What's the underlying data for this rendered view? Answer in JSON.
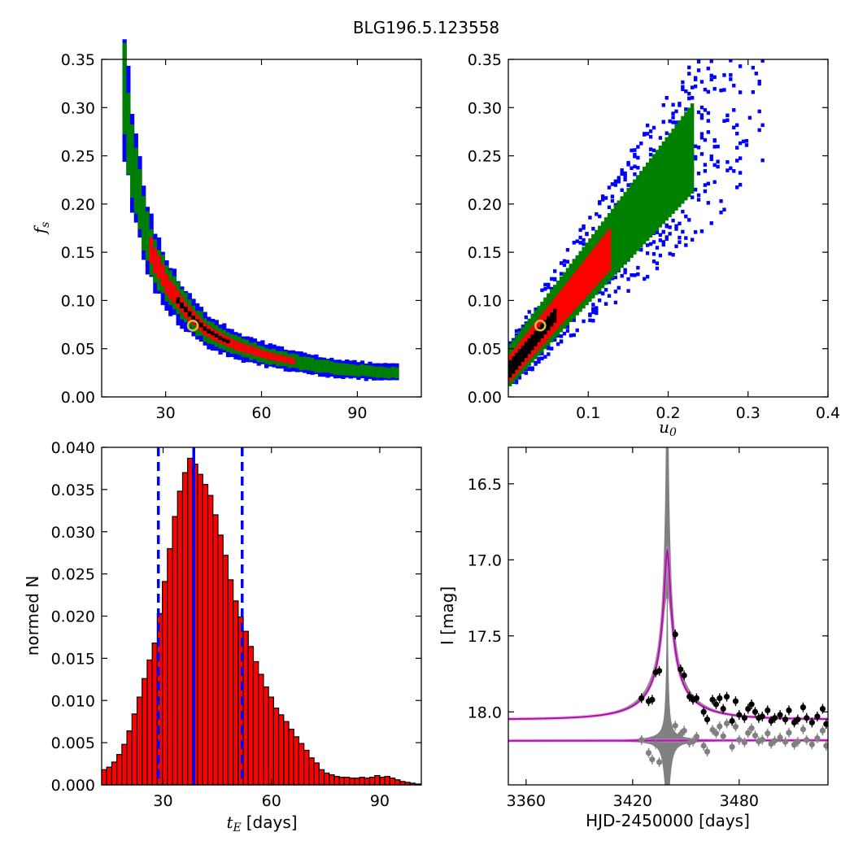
{
  "title": "BLG196.5.123558",
  "chart_data": [
    {
      "type": "heatmap",
      "id": "fs_vs_tE",
      "xlabel": "",
      "ylabel": "f_s",
      "xlim": [
        10,
        110
      ],
      "ylim": [
        0.0,
        0.35
      ],
      "xticks": [
        "30",
        "60",
        "90"
      ],
      "xtick_values": [
        30,
        60,
        90
      ],
      "yticks": [
        "0.00",
        "0.05",
        "0.10",
        "0.15",
        "0.20",
        "0.25",
        "0.30",
        "0.35"
      ],
      "ytick_values": [
        0.0,
        0.05,
        0.1,
        0.15,
        0.2,
        0.25,
        0.3,
        0.35
      ],
      "ridge_x": [
        16.5,
        18,
        20,
        22,
        24,
        27,
        30,
        34,
        38,
        42,
        47,
        52,
        58,
        65,
        72,
        80,
        88,
        95,
        102
      ],
      "ridge_y": [
        0.315,
        0.27,
        0.225,
        0.19,
        0.16,
        0.135,
        0.115,
        0.097,
        0.082,
        0.07,
        0.06,
        0.053,
        0.046,
        0.04,
        0.035,
        0.031,
        0.028,
        0.026,
        0.025
      ],
      "levels": [
        "blue",
        "green",
        "red",
        "black"
      ],
      "best_fit": {
        "x": 38.5,
        "y": 0.074
      },
      "colors": {
        "outer": "#0000ff",
        "mid": "#008000",
        "inner": "#ff0000",
        "core": "#000000",
        "marker": "#d4c13a"
      }
    },
    {
      "type": "heatmap",
      "id": "fs_vs_u0",
      "xlabel": "u_0",
      "ylabel": "",
      "xlim": [
        0.0,
        0.4
      ],
      "ylim": [
        0.0,
        0.35
      ],
      "xticks": [
        "0.1",
        "0.2",
        "0.3",
        "0.4"
      ],
      "xtick_values": [
        0.1,
        0.2,
        0.3,
        0.4
      ],
      "yticks": [
        "0.00",
        "0.05",
        "0.10",
        "0.15",
        "0.20",
        "0.25",
        "0.30",
        "0.35"
      ],
      "ytick_values": [
        0.0,
        0.05,
        0.1,
        0.15,
        0.2,
        0.25,
        0.3,
        0.35
      ],
      "relation_slope": 0.985,
      "relation_intercept": 0.033,
      "best_fit": {
        "x": 0.04,
        "y": 0.074
      },
      "colors": {
        "outer": "#0000ff",
        "mid": "#008000",
        "inner": "#ff0000",
        "core": "#000000",
        "marker": "#d4c13a"
      }
    },
    {
      "type": "bar",
      "id": "tE_histogram",
      "xlabel_var": "t_E",
      "xlabel_unit": "[days]",
      "ylabel": "normed N",
      "xlim": [
        13,
        101.5
      ],
      "ylim": [
        0.0,
        0.04
      ],
      "xticks": [
        "30",
        "60",
        "90"
      ],
      "xtick_values": [
        30,
        60,
        90
      ],
      "yticks": [
        "0.000",
        "0.005",
        "0.010",
        "0.015",
        "0.020",
        "0.025",
        "0.030",
        "0.035",
        "0.040"
      ],
      "ytick_values": [
        0.0,
        0.005,
        0.01,
        0.015,
        0.02,
        0.025,
        0.03,
        0.035,
        0.04
      ],
      "bin_start": 13.0,
      "bin_width": 1.4,
      "values": [
        0.0018,
        0.0021,
        0.0027,
        0.0036,
        0.0048,
        0.0064,
        0.0084,
        0.0104,
        0.0126,
        0.0148,
        0.0168,
        0.0203,
        0.0241,
        0.028,
        0.0318,
        0.0348,
        0.037,
        0.0387,
        0.038,
        0.0368,
        0.0356,
        0.0343,
        0.032,
        0.0296,
        0.0272,
        0.0243,
        0.0218,
        0.0199,
        0.0182,
        0.0164,
        0.0146,
        0.0131,
        0.0116,
        0.0104,
        0.0091,
        0.0083,
        0.0075,
        0.0066,
        0.0057,
        0.0049,
        0.0041,
        0.0032,
        0.0026,
        0.0018,
        0.0014,
        0.0012,
        0.001,
        0.0009,
        0.0009,
        0.0008,
        0.0008,
        0.0009,
        0.0008,
        0.0009,
        0.0011,
        0.0009,
        0.001,
        0.0008,
        0.0006,
        0.0004,
        0.0003,
        0.0002,
        0.0001,
        0.0001
      ],
      "bar_color": "#ff0000",
      "vlines": [
        {
          "x": 28.7,
          "style": "dashed",
          "color": "#0000ff"
        },
        {
          "x": 38.5,
          "style": "solid",
          "color": "#0000ff"
        },
        {
          "x": 51.9,
          "style": "dashed",
          "color": "#0000ff"
        }
      ]
    },
    {
      "type": "line",
      "id": "light_curve",
      "xlabel": "HJD-2450000 [days]",
      "ylabel": "I [mag]",
      "xlim": [
        3350,
        3530
      ],
      "ylim": [
        18.48,
        16.26
      ],
      "xticks": [
        "3360",
        "3420",
        "3480"
      ],
      "xtick_values": [
        3360,
        3420,
        3480
      ],
      "yticks": [
        "16.5",
        "17.0",
        "17.5",
        "18.0"
      ],
      "ytick_values": [
        16.5,
        17.0,
        17.5,
        18.0
      ],
      "model": {
        "t0": 3439.5,
        "tE": 38.5,
        "u0": 0.04,
        "fs": 0.074,
        "baseline": 18.05
      },
      "residual_offset": 18.19,
      "data_points": [
        {
          "t": 3425,
          "mag": 17.91
        },
        {
          "t": 3429,
          "mag": 17.93
        },
        {
          "t": 3431,
          "mag": 17.92
        },
        {
          "t": 3433,
          "mag": 17.74
        },
        {
          "t": 3435,
          "mag": 17.73
        },
        {
          "t": 3444,
          "mag": 17.49
        },
        {
          "t": 3447,
          "mag": 17.72
        },
        {
          "t": 3449,
          "mag": 17.76
        },
        {
          "t": 3452,
          "mag": 17.9
        },
        {
          "t": 3454,
          "mag": 17.92
        },
        {
          "t": 3456,
          "mag": 17.91
        },
        {
          "t": 3460,
          "mag": 18.0
        },
        {
          "t": 3462,
          "mag": 18.05
        },
        {
          "t": 3465,
          "mag": 17.92
        },
        {
          "t": 3467,
          "mag": 17.95
        },
        {
          "t": 3469,
          "mag": 17.91
        },
        {
          "t": 3471,
          "mag": 17.98
        },
        {
          "t": 3473,
          "mag": 17.9
        },
        {
          "t": 3476,
          "mag": 18.06
        },
        {
          "t": 3478,
          "mag": 17.93
        },
        {
          "t": 3480,
          "mag": 18.02
        },
        {
          "t": 3483,
          "mag": 18.04
        },
        {
          "t": 3485,
          "mag": 17.98
        },
        {
          "t": 3487,
          "mag": 17.95
        },
        {
          "t": 3489,
          "mag": 18.0
        },
        {
          "t": 3491,
          "mag": 18.04
        },
        {
          "t": 3493,
          "mag": 18.03
        },
        {
          "t": 3496,
          "mag": 17.99
        },
        {
          "t": 3498,
          "mag": 18.06
        },
        {
          "t": 3500,
          "mag": 18.04
        },
        {
          "t": 3503,
          "mag": 18.02
        },
        {
          "t": 3506,
          "mag": 18.05
        },
        {
          "t": 3508,
          "mag": 17.99
        },
        {
          "t": 3511,
          "mag": 18.07
        },
        {
          "t": 3513,
          "mag": 18.05
        },
        {
          "t": 3516,
          "mag": 17.97
        },
        {
          "t": 3518,
          "mag": 18.04
        },
        {
          "t": 3521,
          "mag": 18.07
        },
        {
          "t": 3524,
          "mag": 18.03
        },
        {
          "t": 3527,
          "mag": 17.98
        },
        {
          "t": 3529,
          "mag": 18.08
        }
      ],
      "colors": {
        "data": "#000000",
        "residual": "#808080",
        "model": "#a020a0",
        "model_glow": "#ff80ff"
      }
    }
  ]
}
